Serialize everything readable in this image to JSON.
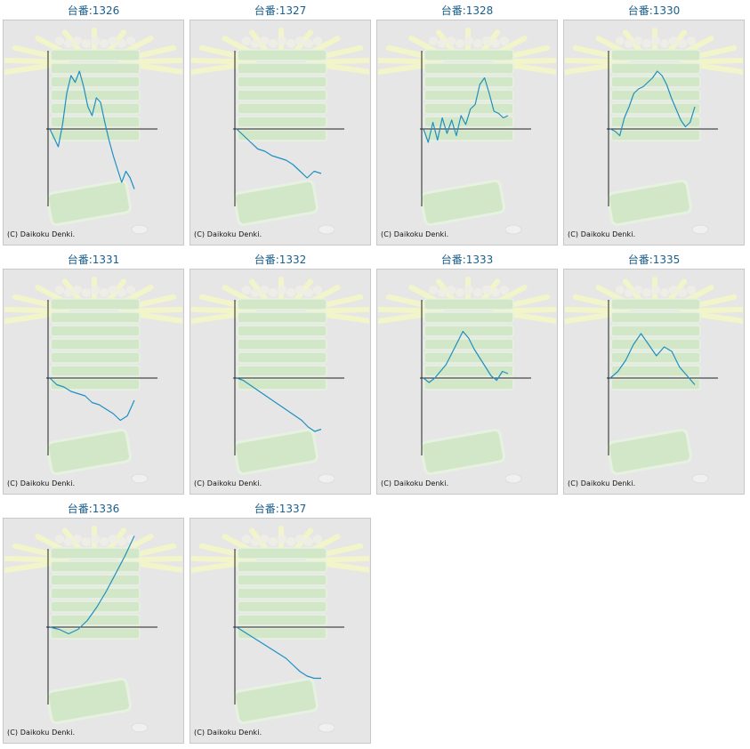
{
  "copyright": "(C) Daikoku Denki.",
  "colors": {
    "line": "#1f8fc2",
    "axis": "#222222",
    "panel": "#e6e6e6",
    "title": "#1a5f8c",
    "watermark_green": "#cfe8c4",
    "watermark_rays": "#f4f6c8"
  },
  "chart_data": [
    {
      "type": "line",
      "title": "台番:1326",
      "y": [
        0.0,
        -0.4,
        -0.8,
        0.2,
        1.6,
        2.4,
        2.1,
        2.6,
        1.9,
        1.0,
        0.6,
        1.4,
        1.2,
        0.3,
        -0.5,
        -1.2,
        -1.8,
        -2.4,
        -1.9,
        -2.2,
        -2.7
      ]
    },
    {
      "type": "line",
      "title": "台番:1327",
      "y": [
        0.0,
        -0.3,
        -0.6,
        -0.9,
        -1.0,
        -1.2,
        -1.3,
        -1.4,
        -1.6,
        -1.9,
        -2.2,
        -1.9,
        -2.0
      ]
    },
    {
      "type": "line",
      "title": "台番:1328",
      "y": [
        0.0,
        -0.6,
        0.3,
        -0.5,
        0.5,
        -0.2,
        0.4,
        -0.3,
        0.6,
        0.2,
        0.9,
        1.1,
        2.0,
        2.3,
        1.6,
        0.8,
        0.7,
        0.5,
        0.6
      ]
    },
    {
      "type": "line",
      "title": "台番:1330",
      "y": [
        0.0,
        -0.1,
        -0.3,
        0.5,
        1.0,
        1.6,
        1.8,
        1.9,
        2.1,
        2.3,
        2.6,
        2.4,
        2.0,
        1.4,
        0.9,
        0.4,
        0.1,
        0.3,
        1.0
      ]
    },
    {
      "type": "line",
      "title": "台番:1331",
      "y": [
        0.0,
        -0.3,
        -0.4,
        -0.6,
        -0.7,
        -0.8,
        -1.1,
        -1.2,
        -1.4,
        -1.6,
        -1.9,
        -1.7,
        -1.0
      ]
    },
    {
      "type": "line",
      "title": "台番:1332",
      "y": [
        0.0,
        -0.1,
        -0.3,
        -0.5,
        -0.7,
        -0.9,
        -1.1,
        -1.3,
        -1.5,
        -1.7,
        -1.9,
        -2.2,
        -2.4,
        -2.3
      ]
    },
    {
      "type": "line",
      "title": "台番:1333",
      "y": [
        0.0,
        -0.2,
        0.0,
        0.3,
        0.6,
        1.1,
        1.6,
        2.1,
        1.8,
        1.3,
        0.9,
        0.5,
        0.1,
        -0.1,
        0.3,
        0.2
      ]
    },
    {
      "type": "line",
      "title": "台番:1335",
      "y": [
        0.0,
        0.3,
        0.8,
        1.5,
        2.0,
        1.5,
        1.0,
        1.4,
        1.2,
        0.5,
        0.1,
        -0.3
      ]
    },
    {
      "type": "line",
      "title": "台番:1336",
      "y": [
        0.0,
        -0.1,
        -0.3,
        -0.1,
        0.3,
        0.9,
        1.6,
        2.4,
        3.2,
        4.1
      ]
    },
    {
      "type": "line",
      "title": "台番:1337",
      "y": [
        0.0,
        -0.2,
        -0.4,
        -0.6,
        -0.8,
        -1.0,
        -1.2,
        -1.4,
        -1.7,
        -2.0,
        -2.2,
        -2.3,
        -2.3
      ]
    }
  ]
}
